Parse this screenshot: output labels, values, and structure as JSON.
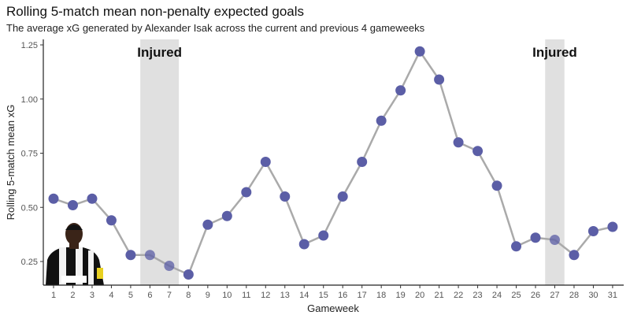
{
  "chart_data": {
    "type": "line",
    "title": "Rolling 5-match mean non-penalty expected goals",
    "subtitle": "The average xG generated by Alexander Isak across the current and previous 4 gameweeks",
    "xlabel": "Gameweek",
    "ylabel": "Rolling 5-match mean xG",
    "categories": [
      "1",
      "2",
      "3",
      "4",
      "5",
      "6",
      "7",
      "8",
      "9",
      "10",
      "11",
      "12",
      "13",
      "14",
      "15",
      "16",
      "17",
      "18",
      "19",
      "20",
      "21",
      "22",
      "23",
      "24",
      "25",
      "26",
      "27",
      "28",
      "30",
      "31"
    ],
    "values": [
      0.54,
      0.51,
      0.54,
      0.44,
      0.28,
      0.28,
      0.23,
      0.19,
      0.42,
      0.46,
      0.57,
      0.71,
      0.55,
      0.33,
      0.37,
      0.55,
      0.71,
      0.9,
      1.04,
      1.22,
      1.09,
      0.8,
      0.76,
      0.6,
      0.32,
      0.36,
      0.35,
      0.28,
      0.39,
      0.41
    ],
    "yticks": [
      "0.25",
      "0.50",
      "0.75",
      "1.00",
      "1.25"
    ],
    "ylim": [
      0.14,
      1.27
    ],
    "grid": false,
    "annotations": [
      {
        "label": "Injured",
        "from": "6",
        "to": "7"
      },
      {
        "label": "Injured",
        "from": "27",
        "to": "27"
      }
    ],
    "colors": {
      "point": "#5b5ea6",
      "line": "#aaaaaa",
      "band": "#e0e0e0"
    }
  }
}
